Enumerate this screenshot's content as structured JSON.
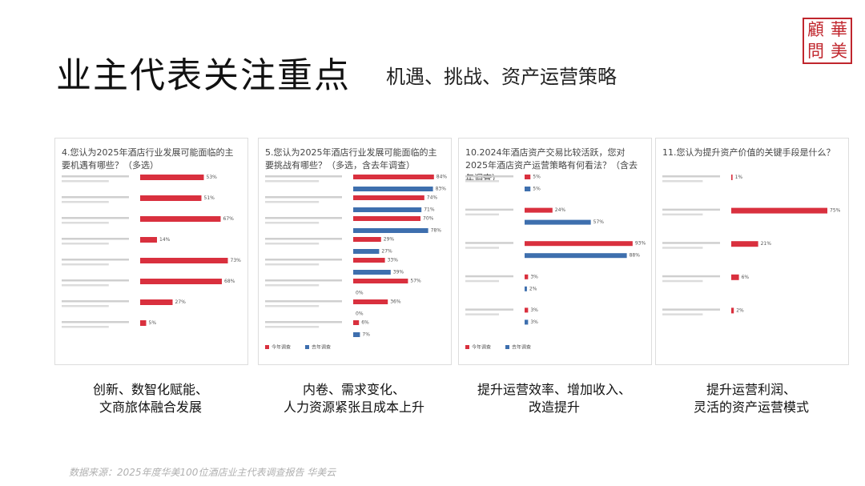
{
  "title": "业主代表关注重点",
  "subtitle": "机遇、挑战、资产运营策略",
  "logo": [
    "華",
    "美",
    "顧",
    "問"
  ],
  "source": "数据来源：2025年度华美100位酒店业主代表调查报告 华美云",
  "captions": [
    [
      "创新、数智化赋能、",
      "文商旅体融合发展"
    ],
    [
      "内卷、需求变化、",
      "人力资源紧张且成本上升"
    ],
    [
      "提升运营效率、增加收入、",
      "改造提升"
    ],
    [
      "提升运营利润、",
      "灵活的资产运营模式"
    ]
  ],
  "chart_data": [
    {
      "type": "bar",
      "title": "4.您认为2025年酒店行业发展可能面临的主要机遇有哪些？（多选）",
      "categories": [
        null,
        null,
        null,
        null,
        null,
        null,
        null,
        null
      ],
      "values": [
        53,
        51,
        67,
        14,
        73,
        68,
        27,
        5
      ],
      "value_labels": [
        "53%",
        "51%",
        "67%",
        "14%",
        "73%",
        "68%",
        "27%",
        "5%"
      ],
      "color": "#d9303e"
    },
    {
      "type": "bar",
      "title": "5.您认为2025年酒店行业发展可能面临的主要挑战有哪些？（多选，含去年调查）",
      "categories": [
        null,
        null,
        null,
        null,
        null,
        null,
        null,
        null
      ],
      "series": [
        {
          "name": "今年调查",
          "color": "#d9303e",
          "values": [
            84,
            74,
            70,
            29,
            33,
            57,
            36,
            6
          ],
          "value_labels": [
            "84%",
            "74%",
            "70%",
            "29%",
            "33%",
            "57%",
            "36%",
            "6%"
          ]
        },
        {
          "name": "去年调查",
          "color": "#3e6fae",
          "values": [
            83,
            71,
            78,
            27,
            39,
            0,
            0,
            7
          ],
          "value_labels": [
            "83%",
            "71%",
            "78%",
            "27%",
            "39%",
            "0%",
            "0%",
            "7%"
          ]
        }
      ],
      "legend": "bottom-left"
    },
    {
      "type": "bar",
      "title": "10.2024年酒店资产交易比较活跃，您对2025年酒店资产运营策略有何看法？（含去年调查）",
      "categories": [
        null,
        null,
        null,
        null,
        null
      ],
      "series": [
        {
          "name": "今年调查",
          "color": "#d9303e",
          "values": [
            5,
            24,
            93,
            3,
            3
          ],
          "value_labels": [
            "5%",
            "24%",
            "93%",
            "3%",
            "3%"
          ]
        },
        {
          "name": "去年调查",
          "color": "#3e6fae",
          "values": [
            5,
            57,
            88,
            2,
            3
          ],
          "value_labels": [
            "5%",
            "57%",
            "88%",
            "2%",
            "3%"
          ]
        }
      ],
      "legend": "bottom-left"
    },
    {
      "type": "bar",
      "title": "11.您认为提升资产价值的关键手段是什么？",
      "categories": [
        null,
        null,
        null,
        null,
        null
      ],
      "values": [
        1,
        75,
        21,
        6,
        2
      ],
      "value_labels": [
        "1%",
        "75%",
        "21%",
        "6%",
        "2%"
      ],
      "color": "#d9303e"
    }
  ]
}
